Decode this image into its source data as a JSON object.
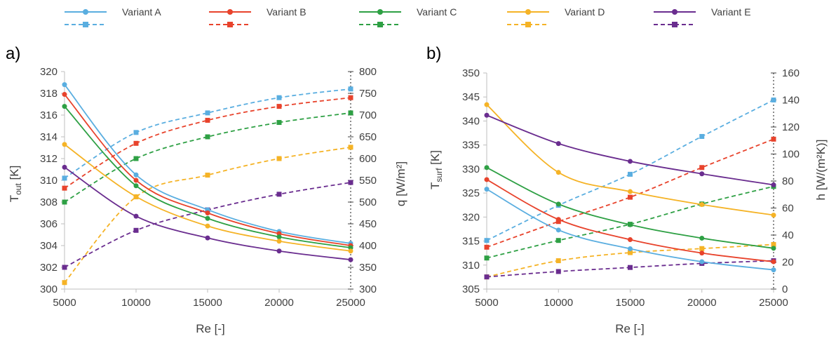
{
  "chart_data": [
    {
      "panel_label": "a)",
      "type": "line",
      "xlabel": "Re [-]",
      "ylabel_left": "T",
      "ylabel_left_sub": "out",
      "ylabel_left_unit": " [K]",
      "ylabel_right": "q [W/m²]",
      "x": [
        5000,
        10000,
        15000,
        20000,
        25000
      ],
      "xlim": [
        5000,
        25000
      ],
      "xticks": [
        "5000",
        "10000",
        "15000",
        "20000",
        "25000"
      ],
      "ylim_left": [
        300,
        320
      ],
      "yticks_left": [
        "300",
        "302",
        "304",
        "306",
        "308",
        "310",
        "312",
        "314",
        "316",
        "318",
        "320"
      ],
      "ylim_right": [
        300,
        800
      ],
      "yticks_right": [
        "300",
        "350",
        "400",
        "450",
        "500",
        "550",
        "600",
        "650",
        "700",
        "750",
        "800"
      ],
      "grid": false,
      "series_left": [
        {
          "variant": 0,
          "values": [
            318.8,
            310.5,
            307.3,
            305.3,
            304.2
          ]
        },
        {
          "variant": 1,
          "values": [
            317.9,
            310.0,
            307.0,
            305.1,
            304.0
          ]
        },
        {
          "variant": 2,
          "values": [
            316.8,
            309.5,
            306.5,
            304.8,
            303.8
          ]
        },
        {
          "variant": 3,
          "values": [
            313.3,
            308.5,
            305.8,
            304.4,
            303.5
          ]
        },
        {
          "variant": 4,
          "values": [
            311.2,
            306.7,
            304.7,
            303.5,
            302.7
          ]
        }
      ],
      "series_right": [
        {
          "variant": 0,
          "values": [
            555,
            660,
            705,
            740,
            760
          ]
        },
        {
          "variant": 1,
          "values": [
            532,
            635,
            688,
            720,
            740
          ]
        },
        {
          "variant": 2,
          "values": [
            500,
            600,
            650,
            683,
            705
          ]
        },
        {
          "variant": 3,
          "values": [
            315,
            512,
            562,
            600,
            626
          ]
        },
        {
          "variant": 4,
          "values": [
            350,
            435,
            482,
            518,
            545
          ]
        }
      ]
    },
    {
      "panel_label": "b)",
      "type": "line",
      "xlabel": "Re [-]",
      "ylabel_left": "T",
      "ylabel_left_sub": "surf",
      "ylabel_left_unit": " [K]",
      "ylabel_right": "h [W/(m²K)]",
      "x": [
        5000,
        10000,
        15000,
        20000,
        25000
      ],
      "xlim": [
        5000,
        25000
      ],
      "xticks": [
        "5000",
        "10000",
        "15000",
        "20000",
        "25000"
      ],
      "ylim_left": [
        305,
        350
      ],
      "yticks_left": [
        "305",
        "310",
        "315",
        "320",
        "325",
        "330",
        "335",
        "340",
        "345",
        "350"
      ],
      "ylim_right": [
        0,
        160
      ],
      "yticks_right": [
        "0",
        "20",
        "40",
        "60",
        "80",
        "100",
        "120",
        "140",
        "160"
      ],
      "grid": false,
      "series_left": [
        {
          "variant": 0,
          "values": [
            325.8,
            317.3,
            313.4,
            310.7,
            309.0
          ]
        },
        {
          "variant": 1,
          "values": [
            327.8,
            319.5,
            315.3,
            312.5,
            310.7
          ]
        },
        {
          "variant": 2,
          "values": [
            330.3,
            322.7,
            318.4,
            315.6,
            313.5
          ]
        },
        {
          "variant": 3,
          "values": [
            343.4,
            329.3,
            325.3,
            322.6,
            320.4
          ]
        },
        {
          "variant": 4,
          "values": [
            341.2,
            335.3,
            331.6,
            329.0,
            326.7
          ]
        }
      ],
      "series_right": [
        {
          "variant": 0,
          "values": [
            36,
            62,
            85,
            113,
            140
          ]
        },
        {
          "variant": 1,
          "values": [
            31,
            50,
            68,
            90,
            111
          ]
        },
        {
          "variant": 2,
          "values": [
            23,
            36,
            48,
            63,
            76
          ]
        },
        {
          "variant": 3,
          "values": [
            9,
            21,
            27,
            30,
            33
          ]
        },
        {
          "variant": 4,
          "values": [
            9,
            13,
            16,
            19,
            21
          ]
        }
      ]
    }
  ],
  "legend": [
    {
      "name": "Variant A",
      "color": "#5aaee0"
    },
    {
      "name": "Variant B",
      "color": "#e8432c"
    },
    {
      "name": "Variant C",
      "color": "#2ea044"
    },
    {
      "name": "Variant D",
      "color": "#f5b326"
    },
    {
      "name": "Variant E",
      "color": "#6a2d8f"
    }
  ]
}
